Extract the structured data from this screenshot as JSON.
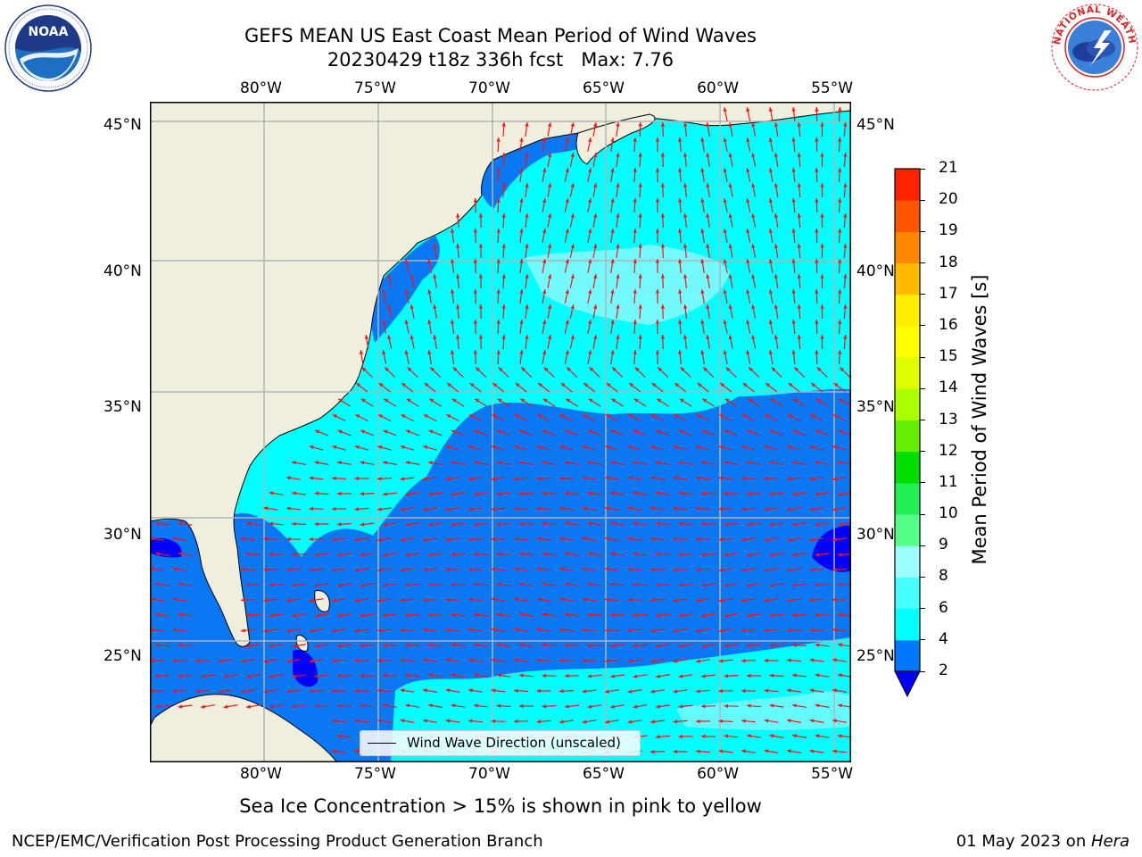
{
  "title": {
    "line1": "GEFS MEAN US East Coast Mean Period of Wind Waves",
    "line2": "20230429 t18z 336h fcst   Max: 7.76"
  },
  "logos": {
    "left": "NOAA",
    "left_ring": "NATIONAL OCEANIC AND ATMOSPHERIC ADMINISTRATION · U.S. DEPARTMENT OF COMMERCE",
    "right_ring": "NATIONAL WEATHER SERVICE"
  },
  "map": {
    "lon_labels": [
      "80°W",
      "75°W",
      "70°W",
      "65°W",
      "60°W",
      "55°W"
    ],
    "lat_labels": [
      "45°N",
      "40°N",
      "35°N",
      "30°N",
      "25°N"
    ],
    "lon_values": [
      -80,
      -75,
      -70,
      -65,
      -60,
      -55
    ],
    "lat_values": [
      45,
      40,
      35,
      30,
      25
    ],
    "extent": {
      "lon_min": -85,
      "lon_max": -54.3,
      "lat_min": 20.5,
      "lat_max": 45.8
    },
    "colors": {
      "land": "#f0eedc",
      "deep_blue": "#0a77f3",
      "cyan": "#00ffff",
      "light_cyan": "#8ef9ff",
      "arrow": "#ff1010",
      "grid": "#b3b3b3"
    }
  },
  "legend": {
    "label": "Wind Wave Direction (unscaled)"
  },
  "colorbar": {
    "label": "Mean Period of Wind Waves [s]",
    "ticks": [
      "2",
      "4",
      "6",
      "8",
      "9",
      "10",
      "11",
      "12",
      "13",
      "14",
      "15",
      "16",
      "17",
      "18",
      "19",
      "20",
      "21"
    ],
    "colors": [
      "#0077ff",
      "#00ffff",
      "#46ffff",
      "#99ffff",
      "#55ff88",
      "#22ee55",
      "#00dd00",
      "#66ee00",
      "#aaff00",
      "#ddff00",
      "#ffff00",
      "#ffee00",
      "#ffbb00",
      "#ff8800",
      "#ff5500",
      "#ff2200",
      "#ff0000"
    ],
    "under_color": "#0000ff"
  },
  "caption": "Sea Ice Concentration > 15% is shown in pink to yellow",
  "footer": {
    "left": "NCEP/EMC/Verification Post Processing Product Generation Branch",
    "right_date": "01 May 2023 on ",
    "right_machine": "Hera"
  }
}
